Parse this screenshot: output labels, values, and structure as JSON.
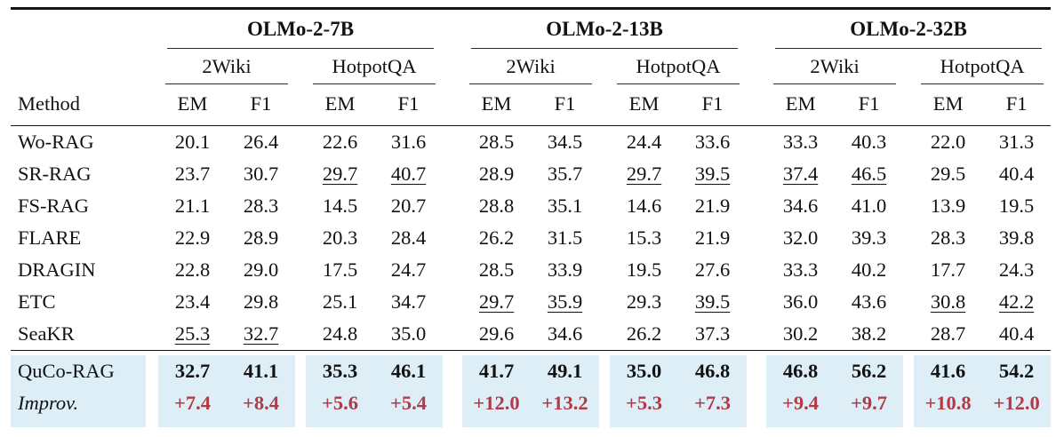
{
  "colors": {
    "highlight_bg": "#ddeef6",
    "improv_red": "#b23a48",
    "rule_color": "#141414"
  },
  "table": {
    "method_header": "Method",
    "model_groups": [
      {
        "label": "OLMo-2-7B"
      },
      {
        "label": "OLMo-2-13B"
      },
      {
        "label": "OLMo-2-32B"
      }
    ],
    "dataset_labels": [
      "2Wiki",
      "HotpotQA"
    ],
    "metric_labels": [
      "EM",
      "F1"
    ],
    "rows": [
      {
        "method": "Wo-RAG",
        "values": [
          "20.1",
          "26.4",
          "22.6",
          "31.6",
          "28.5",
          "34.5",
          "24.4",
          "33.6",
          "33.3",
          "40.3",
          "22.0",
          "31.3"
        ],
        "underline": []
      },
      {
        "method": "SR-RAG",
        "values": [
          "23.7",
          "30.7",
          "29.7",
          "40.7",
          "28.9",
          "35.7",
          "29.7",
          "39.5",
          "37.4",
          "46.5",
          "29.5",
          "40.4"
        ],
        "underline": [
          2,
          3,
          6,
          7,
          8,
          9
        ]
      },
      {
        "method": "FS-RAG",
        "values": [
          "21.1",
          "28.3",
          "14.5",
          "20.7",
          "28.8",
          "35.1",
          "14.6",
          "21.9",
          "34.6",
          "41.0",
          "13.9",
          "19.5"
        ],
        "underline": []
      },
      {
        "method": "FLARE",
        "values": [
          "22.9",
          "28.9",
          "20.3",
          "28.4",
          "26.2",
          "31.5",
          "15.3",
          "21.9",
          "32.0",
          "39.3",
          "28.3",
          "39.8"
        ],
        "underline": []
      },
      {
        "method": "DRAGIN",
        "values": [
          "22.8",
          "29.0",
          "17.5",
          "24.7",
          "28.5",
          "33.9",
          "19.5",
          "27.6",
          "33.3",
          "40.2",
          "17.7",
          "24.3"
        ],
        "underline": []
      },
      {
        "method": "ETC",
        "values": [
          "23.4",
          "29.8",
          "25.1",
          "34.7",
          "29.7",
          "35.9",
          "29.3",
          "39.5",
          "36.0",
          "43.6",
          "30.8",
          "42.2"
        ],
        "underline": [
          4,
          5,
          7,
          10,
          11
        ]
      },
      {
        "method": "SeaKR",
        "values": [
          "25.3",
          "32.7",
          "24.8",
          "35.0",
          "29.6",
          "34.6",
          "26.2",
          "37.3",
          "30.2",
          "38.2",
          "28.7",
          "40.4"
        ],
        "underline": [
          0,
          1
        ]
      }
    ],
    "highlight_rows": [
      {
        "method": "QuCo-RAG",
        "style": "main",
        "values": [
          "32.7",
          "41.1",
          "35.3",
          "46.1",
          "41.7",
          "49.1",
          "35.0",
          "46.8",
          "46.8",
          "56.2",
          "41.6",
          "54.2"
        ]
      },
      {
        "method": "Improv.",
        "style": "improv",
        "values": [
          "+7.4",
          "+8.4",
          "+5.6",
          "+5.4",
          "+12.0",
          "+13.2",
          "+5.3",
          "+7.3",
          "+9.4",
          "+9.7",
          "+10.8",
          "+12.0"
        ]
      }
    ]
  }
}
